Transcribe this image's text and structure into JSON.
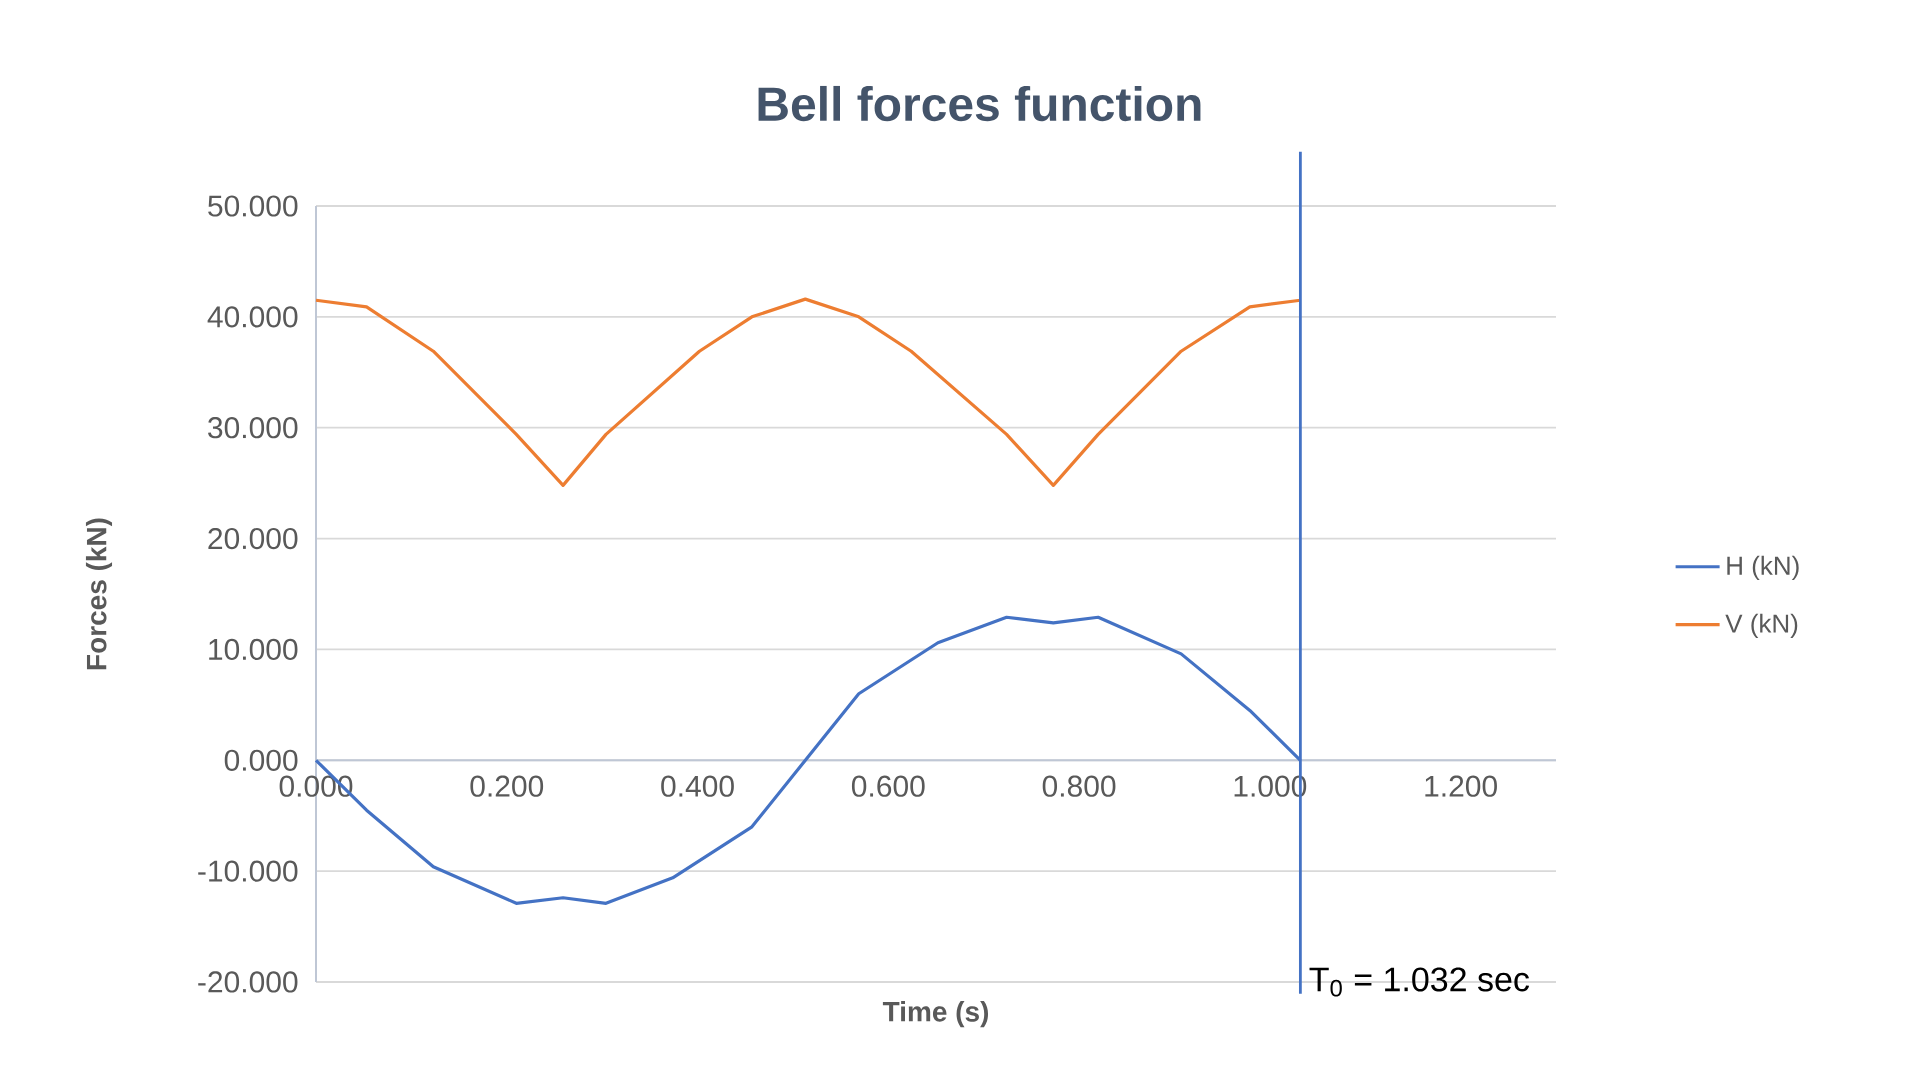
{
  "chart_data": {
    "type": "line",
    "title": "Bell forces function",
    "xlabel": "Time (s)",
    "ylabel": "Forces (kN)",
    "series": [
      {
        "name": "H (kN)",
        "color": "#4472c4",
        "x": [
          0,
          0.053,
          0.123,
          0.21,
          0.259,
          0.304,
          0.374,
          0.457,
          0.513,
          0.569,
          0.652,
          0.724,
          0.773,
          0.82,
          0.907,
          0.979,
          1.032
        ],
        "values": [
          0,
          -4.5,
          -9.6,
          -12.9,
          -12.4,
          -12.9,
          -10.6,
          -6.0,
          0,
          6.0,
          10.6,
          12.9,
          12.4,
          12.9,
          9.6,
          4.5,
          0
        ]
      },
      {
        "name": "V (kN)",
        "color": "#ed7d31",
        "x": [
          0,
          0.053,
          0.123,
          0.21,
          0.259,
          0.304,
          0.402,
          0.457,
          0.513,
          0.569,
          0.624,
          0.724,
          0.773,
          0.82,
          0.907,
          0.979,
          1.032
        ],
        "values": [
          41.5,
          40.9,
          36.9,
          29.4,
          24.8,
          29.4,
          36.9,
          40.0,
          41.6,
          40.0,
          36.9,
          29.4,
          24.8,
          29.4,
          36.9,
          40.9,
          41.5
        ]
      }
    ],
    "xlim": [
      0,
      1.3
    ],
    "ylim": [
      -20,
      50
    ],
    "xticks": [
      {
        "value": 0,
        "label": "0.000"
      },
      {
        "value": 0.2,
        "label": "0.200"
      },
      {
        "value": 0.4,
        "label": "0.400"
      },
      {
        "value": 0.6,
        "label": "0.600"
      },
      {
        "value": 0.8,
        "label": "0.800"
      },
      {
        "value": 1.0,
        "label": "1.000"
      },
      {
        "value": 1.2,
        "label": "1.200"
      }
    ],
    "yticks": [
      {
        "value": -20,
        "label": "-20.000"
      },
      {
        "value": -10,
        "label": "-10.000"
      },
      {
        "value": 0,
        "label": "0.000"
      },
      {
        "value": 10,
        "label": "10.000"
      },
      {
        "value": 20,
        "label": "20.000"
      },
      {
        "value": 30,
        "label": "30.000"
      },
      {
        "value": 40,
        "label": "40.000"
      },
      {
        "value": 50,
        "label": "50.000"
      }
    ],
    "ref_lines": [
      {
        "axis": "x",
        "value": 1.032,
        "label": "T$_{0}$ = 1.032 sec",
        "color": "#4472c4"
      }
    ],
    "grid": "y",
    "legend": "right",
    "marker": "none"
  }
}
